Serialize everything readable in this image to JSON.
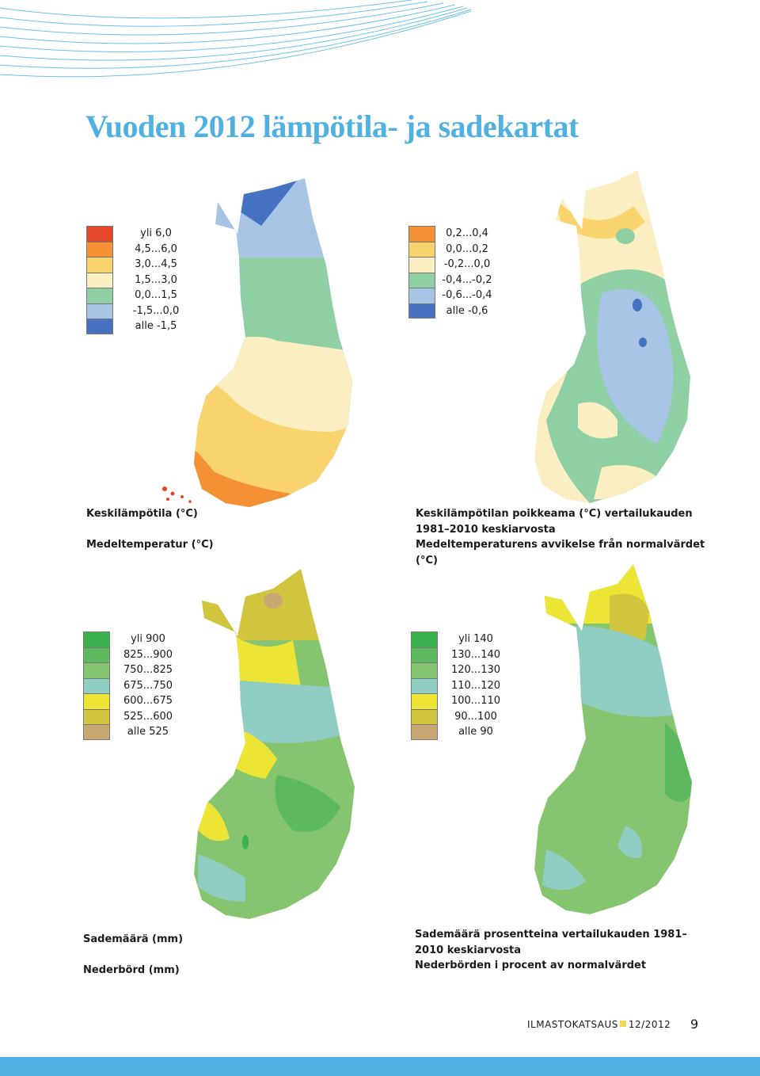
{
  "page": {
    "title": "Vuoden 2012 lämpötila- ja sadekartat",
    "footer": {
      "publication": "ILMASTOKATSAUS",
      "issue": "12/2012",
      "page_number": "9"
    },
    "colors": {
      "accent": "#4fb1e1",
      "footer_square": "#f0d94a"
    }
  },
  "panels": [
    {
      "id": "temperature",
      "legend": [
        {
          "label": "yli 6,0",
          "color": "#e4472a"
        },
        {
          "label": "4,5...6,0",
          "color": "#f39134"
        },
        {
          "label": "3,0...4,5",
          "color": "#f9d46e"
        },
        {
          "label": "1,5...3,0",
          "color": "#fbeec2"
        },
        {
          "label": "0,0...1,5",
          "color": "#8fcfa4"
        },
        {
          "label": "-1,5...0,0",
          "color": "#a7c4e4"
        },
        {
          "label": "alle -1,5",
          "color": "#4573c2"
        }
      ],
      "caption": [
        "Keskilämpötila (°C)",
        "",
        "Medeltemperatur (°C)"
      ]
    },
    {
      "id": "temperature-anomaly",
      "legend": [
        {
          "label": "0,2...0,4",
          "color": "#f39134"
        },
        {
          "label": "0,0...0,2",
          "color": "#f9d46e"
        },
        {
          "label": "-0,2...0,0",
          "color": "#fbeec2"
        },
        {
          "label": "-0,4...-0,2",
          "color": "#8fcfa4"
        },
        {
          "label": "-0,6...-0,4",
          "color": "#a7c4e4"
        },
        {
          "label": "alle -0,6",
          "color": "#4573c2"
        }
      ],
      "caption": [
        "Keskilämpötilan poikkeama (°C) vertailukauden",
        "1981–2010 keskiarvosta",
        "Medeltemperaturens avvikelse från normalvärdet",
        "(°C)"
      ]
    },
    {
      "id": "precipitation",
      "legend": [
        {
          "label": "yli 900",
          "color": "#3bb24d"
        },
        {
          "label": "825...900",
          "color": "#5cb95e"
        },
        {
          "label": "750...825",
          "color": "#86c56f"
        },
        {
          "label": "675...750",
          "color": "#8fcdc3"
        },
        {
          "label": "600...675",
          "color": "#ede535"
        },
        {
          "label": "525...600",
          "color": "#d1c43f"
        },
        {
          "label": "alle 525",
          "color": "#c9a772"
        }
      ],
      "caption": [
        "Sademäärä (mm)",
        "",
        "Nederbörd (mm)"
      ]
    },
    {
      "id": "precipitation-percent",
      "legend": [
        {
          "label": "yli 140",
          "color": "#3bb24d"
        },
        {
          "label": "130...140",
          "color": "#5cb95e"
        },
        {
          "label": "120...130",
          "color": "#86c56f"
        },
        {
          "label": "110...120",
          "color": "#8fcdc3"
        },
        {
          "label": "100...110",
          "color": "#ede535"
        },
        {
          "label": "90...100",
          "color": "#d1c43f"
        },
        {
          "label": "alle 90",
          "color": "#c9a772"
        }
      ],
      "caption": [
        "Sademäärä prosentteina vertailukauden 1981–",
        "2010 keskiarvosta",
        "Nederbörden i procent av normalvärdet"
      ]
    }
  ]
}
